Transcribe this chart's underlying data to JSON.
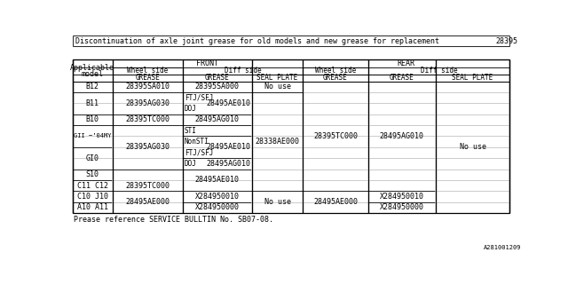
{
  "title": "Discontinuation of axle joint grease for old models and new grease for replacement",
  "title_code": "28395",
  "footer": "Prease reference SERVICE BULLTIN No. SB07-08.",
  "footer_code": "A281001209",
  "bg_color": "#ffffff",
  "border_color": "#000000"
}
